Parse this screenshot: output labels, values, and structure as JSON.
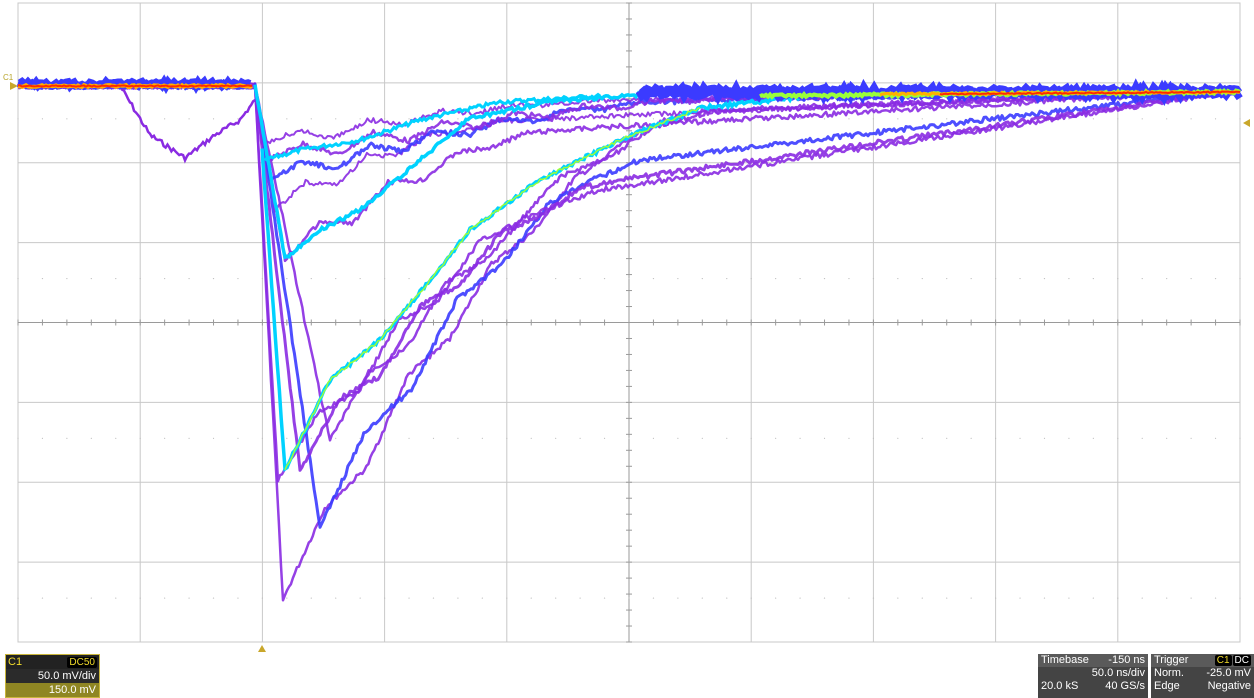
{
  "channel": {
    "name": "C1",
    "coupling": "DC50",
    "volts_per_div": "50.0 mV/div",
    "offset": "150.0 mV",
    "marker_label": "C1"
  },
  "timebase": {
    "label": "Timebase",
    "delay": "-150 ns",
    "time_per_div": "50.0 ns/div",
    "samples": "20.0 kS",
    "sample_rate": "40 GS/s"
  },
  "trigger": {
    "label": "Trigger",
    "source_badge": "C1",
    "coupling_badge": "DC",
    "mode": "Norm.",
    "level": "-25.0 mV",
    "type": "Edge",
    "slope": "Negative"
  },
  "colors": {
    "grid": "#c8c8c8",
    "accent": "#c9b53a",
    "trace_purple": "#8a2be2",
    "trace_blue": "#3b3bff",
    "trace_cyan": "#00d2ff",
    "trace_green": "#9aff3a",
    "trace_red": "#ff2a00"
  }
}
